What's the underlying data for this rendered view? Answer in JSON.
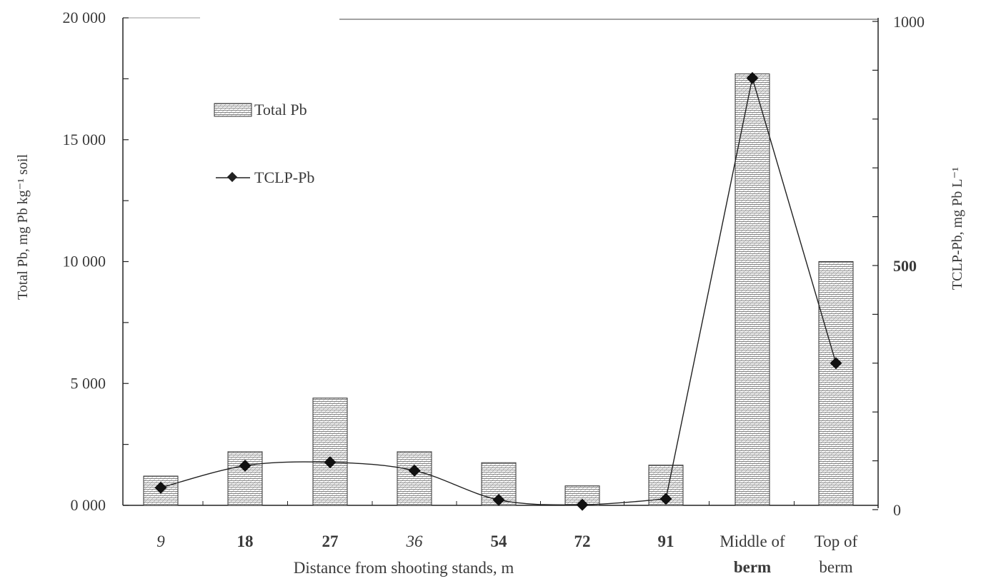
{
  "chart_data": {
    "type": "bar",
    "title": "",
    "xlabel": "Distance from shooting stands, m",
    "ylabel_left": "Total Pb, mg Pb kg⁻¹ soil",
    "ylabel_right": "TCLP-Pb, mg Pb L⁻¹",
    "categories": [
      "9",
      "18",
      "27",
      "36",
      "54",
      "72",
      "91",
      "Middle of berm",
      "Top of berm"
    ],
    "category_lines": [
      [
        "9"
      ],
      [
        "18"
      ],
      [
        "27"
      ],
      [
        "36"
      ],
      [
        "54"
      ],
      [
        "72"
      ],
      [
        "91"
      ],
      [
        "Middle of",
        "berm"
      ],
      [
        "Top of",
        "berm"
      ]
    ],
    "y_left_lim": [
      0,
      20000
    ],
    "y_left_ticks": [
      0,
      5000,
      10000,
      15000,
      20000
    ],
    "y_left_tick_labels": [
      "0 000",
      "5 000",
      "10 000",
      "15 000",
      "20 000"
    ],
    "y_right_lim": [
      0,
      1000
    ],
    "y_right_tick_labels": [
      {
        "value": 0,
        "label": "0"
      },
      {
        "value": 500,
        "label": "500"
      },
      {
        "value": 1000,
        "label": "1000"
      }
    ],
    "series": [
      {
        "name": "Total Pb",
        "type": "bar",
        "axis": "left",
        "values": [
          1200,
          2200,
          4400,
          2200,
          1750,
          800,
          1650,
          17700,
          10000
        ]
      },
      {
        "name": "TCLP-Pb",
        "type": "line",
        "axis": "right",
        "values": [
          45,
          90,
          97,
          80,
          20,
          10,
          22,
          884,
          300
        ]
      }
    ],
    "legend_position": "top-left",
    "grid": false
  }
}
